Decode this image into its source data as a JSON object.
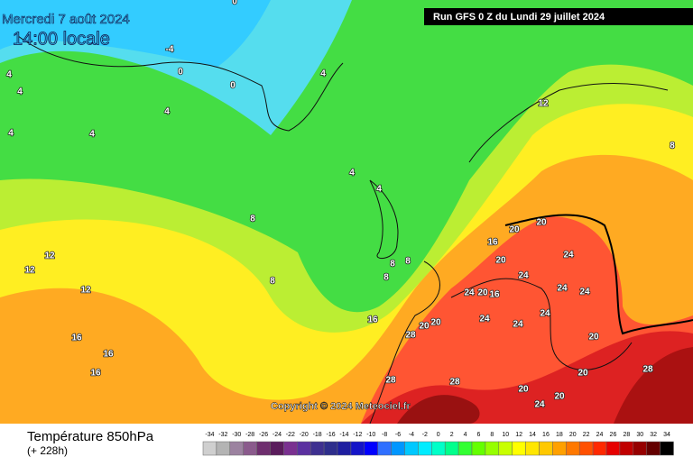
{
  "header": {
    "valid_date": "Mercredi 7 août 2024",
    "local_time": "14:00 locale",
    "run": "Run GFS 0 Z du Lundi 29 juillet 2024"
  },
  "map": {
    "isotherm_labels": [
      "0",
      "-4",
      "0",
      "0",
      "4",
      "4",
      "4",
      "4",
      "4",
      "4",
      "4",
      "4",
      "8",
      "8",
      "8",
      "8",
      "8",
      "8",
      "12",
      "12",
      "12",
      "12",
      "16",
      "16",
      "16",
      "16",
      "16",
      "16",
      "20",
      "20",
      "20",
      "20",
      "20",
      "20",
      "20",
      "20",
      "20",
      "20",
      "24",
      "24",
      "24",
      "24",
      "24",
      "24",
      "24",
      "24",
      "24",
      "28",
      "28",
      "28",
      "28"
    ],
    "copyright": "Copyright © 2024 Meteociel.fr"
  },
  "footer": {
    "title": "Température 850hPa",
    "lead_time": "(+ 228h)"
  },
  "scale": {
    "values": [
      -34,
      -32,
      -30,
      -28,
      -26,
      -24,
      -22,
      -20,
      -18,
      -16,
      -14,
      -12,
      -10,
      -8,
      -6,
      -4,
      -2,
      0,
      2,
      4,
      6,
      8,
      10,
      12,
      14,
      16,
      18,
      20,
      22,
      24,
      26,
      28,
      30,
      32,
      34
    ],
    "colors": [
      "#cfcfcf",
      "#b4b4b4",
      "#9c82a0",
      "#8a5a8c",
      "#6e2e6e",
      "#5a1c5c",
      "#7a3090",
      "#5b30a0",
      "#3e3090",
      "#2e2e8c",
      "#1e1ea0",
      "#1414c8",
      "#0000ff",
      "#2f6fff",
      "#0096ff",
      "#00c8ff",
      "#00ecff",
      "#00ffc8",
      "#00ff8c",
      "#32ff32",
      "#64ff00",
      "#96ff00",
      "#c8ff00",
      "#ffff00",
      "#ffe600",
      "#ffc800",
      "#ffa000",
      "#ff7800",
      "#ff5000",
      "#ff2800",
      "#e60000",
      "#c00000",
      "#960000",
      "#640000",
      "#000000"
    ]
  }
}
